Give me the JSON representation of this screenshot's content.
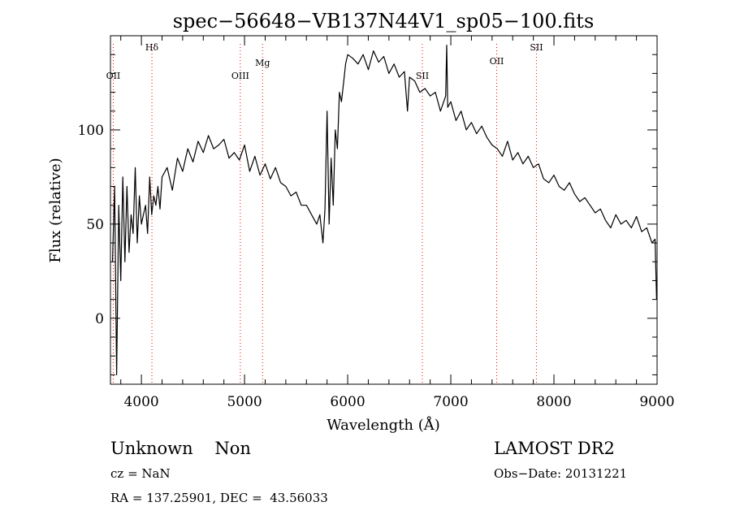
{
  "chart_data": {
    "type": "line",
    "title": "spec−56648−VB137N44V1_sp05−100.fits",
    "xlabel": "Wavelength (Å)",
    "ylabel": "Flux (relative)",
    "xlim": [
      3700,
      9000
    ],
    "ylim": [
      -35,
      150
    ],
    "x_ticks": [
      4000,
      5000,
      6000,
      7000,
      8000,
      9000
    ],
    "y_ticks": [
      0,
      50,
      100
    ],
    "grid": false,
    "line_color": "#000000",
    "marker_color": "#ff0000",
    "line_markers": [
      {
        "name": "OII",
        "x": 3727
      },
      {
        "name": "Hδ",
        "x": 4102
      },
      {
        "name": "OIII",
        "x": 4959
      },
      {
        "name": "Mg",
        "x": 5175
      },
      {
        "name": "SII",
        "x": 6724
      },
      {
        "name": "OII",
        "x": 7445
      },
      {
        "name": "SII",
        "x": 7830
      }
    ],
    "series": [
      {
        "x": [
          3720,
          3740,
          3760,
          3780,
          3800,
          3820,
          3840,
          3860,
          3880,
          3900,
          3920,
          3940,
          3960,
          3980,
          4000,
          4020,
          4040,
          4060,
          4080,
          4100,
          4120,
          4140,
          4160,
          4180,
          4200,
          4250,
          4300,
          4350,
          4400,
          4450,
          4500,
          4550,
          4600,
          4650,
          4700,
          4750,
          4800,
          4850,
          4900,
          4950,
          5000,
          5050,
          5100,
          5150,
          5200,
          5250,
          5300,
          5350,
          5400,
          5450,
          5500,
          5550,
          5600,
          5650,
          5700,
          5730,
          5760,
          5780,
          5800,
          5820,
          5840,
          5860,
          5880,
          5900,
          5920,
          5940,
          5960,
          5980,
          6000,
          6050,
          6100,
          6150,
          6200,
          6250,
          6300,
          6350,
          6400,
          6450,
          6500,
          6550,
          6580,
          6600,
          6650,
          6700,
          6750,
          6800,
          6850,
          6900,
          6950,
          6960,
          6970,
          7000,
          7050,
          7100,
          7150,
          7200,
          7250,
          7300,
          7350,
          7400,
          7450,
          7500,
          7550,
          7600,
          7650,
          7700,
          7750,
          7800,
          7850,
          7900,
          7950,
          8000,
          8050,
          8100,
          8150,
          8200,
          8250,
          8300,
          8350,
          8400,
          8450,
          8500,
          8550,
          8600,
          8650,
          8700,
          8750,
          8800,
          8850,
          8900,
          8950,
          8980,
          8995
        ],
        "y": [
          30,
          70,
          -30,
          60,
          20,
          75,
          30,
          70,
          35,
          55,
          45,
          80,
          40,
          65,
          50,
          55,
          60,
          45,
          75,
          55,
          65,
          60,
          70,
          58,
          75,
          80,
          68,
          85,
          78,
          90,
          83,
          94,
          88,
          97,
          90,
          92,
          95,
          85,
          88,
          84,
          92,
          78,
          86,
          76,
          82,
          74,
          80,
          72,
          70,
          65,
          67,
          60,
          60,
          55,
          50,
          55,
          40,
          58,
          110,
          50,
          85,
          60,
          100,
          90,
          120,
          115,
          125,
          135,
          140,
          138,
          135,
          140,
          132,
          142,
          136,
          139,
          130,
          135,
          128,
          131,
          110,
          128,
          126,
          120,
          122,
          118,
          120,
          110,
          118,
          145,
          112,
          115,
          105,
          110,
          100,
          104,
          98,
          102,
          96,
          92,
          90,
          86,
          94,
          84,
          88,
          82,
          86,
          80,
          82,
          74,
          72,
          76,
          70,
          68,
          72,
          66,
          62,
          64,
          60,
          56,
          58,
          52,
          48,
          55,
          50,
          52,
          48,
          54,
          46,
          48,
          40,
          42,
          10
        ]
      }
    ]
  },
  "info": {
    "class_text": "Unknown    Non",
    "cz_text": "cz = NaN",
    "radec_text": "RA = 137.25901, DEC =  43.56033",
    "survey_text": "LAMOST DR2",
    "obs_date_text": "Obs−Date: 20131221"
  }
}
